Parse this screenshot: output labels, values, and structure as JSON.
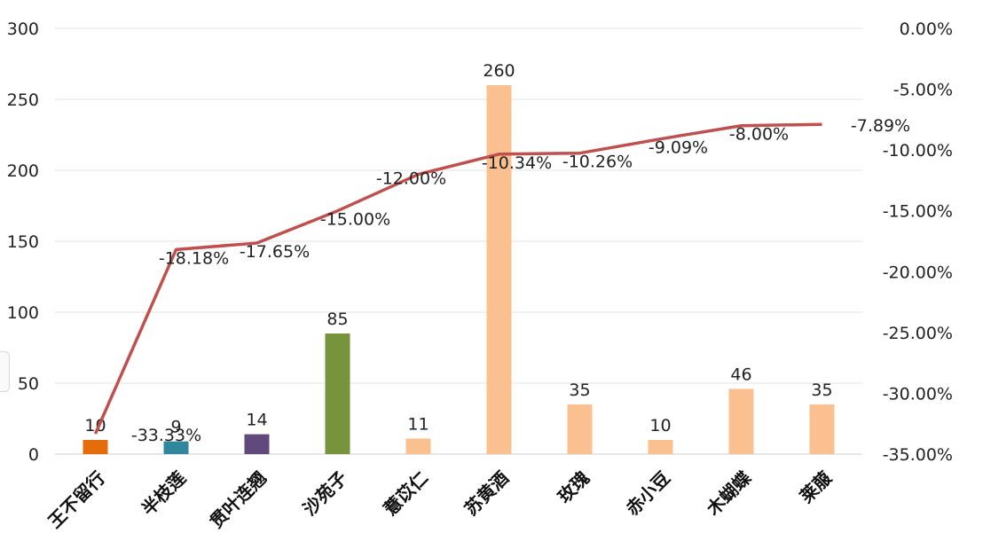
{
  "chart_data": {
    "type": "bar+line",
    "categories": [
      "王不留行",
      "半枝莲",
      "贯叶连翘",
      "沙苑子",
      "薏苡仁",
      "苏黄酒",
      "玫瑰",
      "赤小豆",
      "木蝴蝶",
      "莱菔"
    ],
    "bar_values": [
      10,
      9,
      14,
      85,
      11,
      260,
      35,
      10,
      46,
      35
    ],
    "bar_labels": [
      "10",
      "9",
      "14",
      "85",
      "11",
      "260",
      "35",
      "10",
      "46",
      "35"
    ],
    "bar_colors": [
      "#e46c0a",
      "#31859c",
      "#604a7b",
      "#77933c",
      "#fac090",
      "#fac090",
      "#fac090",
      "#fac090",
      "#fac090",
      "#fac090"
    ],
    "line_values": [
      -33.33,
      -18.18,
      -17.65,
      -15.0,
      -12.0,
      -10.34,
      -10.26,
      -9.09,
      -8.0,
      -7.89
    ],
    "line_labels": [
      "-33.33%",
      "-18.18%",
      "-17.65%",
      "-15.00%",
      "-12.00%",
      "-10.34%",
      "-10.26%",
      "-9.09%",
      "-8.00%",
      "-7.89%"
    ],
    "line_color": "#c0504d",
    "y_left": {
      "min": 0,
      "max": 300,
      "ticks": [
        "0",
        "50",
        "100",
        "150",
        "200",
        "250",
        "300"
      ]
    },
    "y_right": {
      "min": -35,
      "max": 0,
      "ticks": [
        "-35.00%",
        "-30.00%",
        "-25.00%",
        "-20.00%",
        "-15.00%",
        "-10.00%",
        "-5.00%",
        "0.00%"
      ]
    },
    "grid": true,
    "legend": "none"
  }
}
